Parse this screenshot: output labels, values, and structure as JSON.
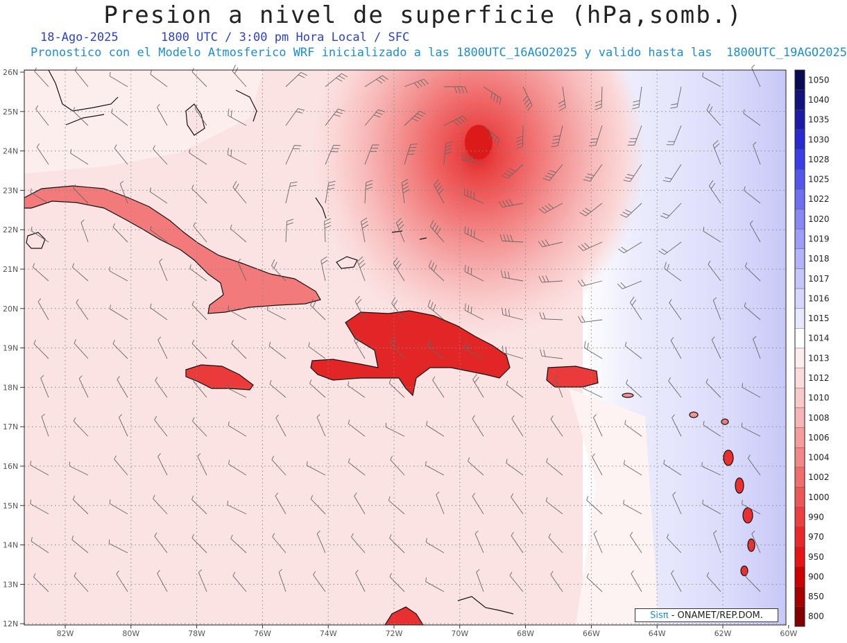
{
  "title": "Presion a nivel de superficie (hPa,somb.)",
  "date_line": "18-Ago-2025      1800 UTC / 3:00 pm Hora Local / SFC",
  "model_line": "Pronostico con el Modelo Atmosferico WRF inicializado a las 1800UTC_16AGO2025 y valido hasta las  1800UTC_19AGO2025",
  "lat_labels": [
    "26N",
    "25N",
    "24N",
    "23N",
    "22N",
    "21N",
    "20N",
    "19N",
    "18N",
    "17N",
    "16N",
    "15N",
    "14N",
    "13N",
    "12N"
  ],
  "lon_labels": [
    "82W",
    "80W",
    "78W",
    "76W",
    "74W",
    "72W",
    "70W",
    "68W",
    "66W",
    "64W",
    "62W",
    "60W"
  ],
  "colorbar": {
    "levels": [
      "1050",
      "1040",
      "1035",
      "1030",
      "1028",
      "1025",
      "1022",
      "1020",
      "1019",
      "1018",
      "1017",
      "1016",
      "1015",
      "1014",
      "1013",
      "1012",
      "1010",
      "1008",
      "1006",
      "1004",
      "1002",
      "1000",
      "990",
      "970",
      "950",
      "900",
      "850",
      "800"
    ],
    "colors": [
      "#0b0b55",
      "#13137c",
      "#1c1ca8",
      "#2a2ad0",
      "#3d3de6",
      "#5555ee",
      "#6f6ff2",
      "#8888f5",
      "#9e9ef8",
      "#b3b3fa",
      "#c6c6fb",
      "#d7d7fd",
      "#e7e7fe",
      "#ffffff",
      "#fdeeee",
      "#fbdcdc",
      "#f9c9c9",
      "#f7b4b4",
      "#f59d9d",
      "#f38686",
      "#f06e6e",
      "#ee5757",
      "#ec3f3f",
      "#e92929",
      "#e61414",
      "#cc0000",
      "#a80000",
      "#820000"
    ]
  },
  "credit": {
    "brand": "Sisπ",
    "org": " - ONAMET/REP.DOM."
  }
}
